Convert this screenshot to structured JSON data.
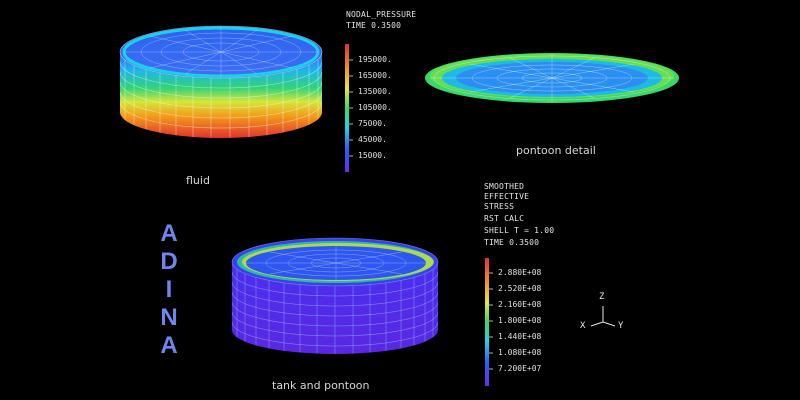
{
  "brand": {
    "letters": [
      "A",
      "D",
      "I",
      "N",
      "A"
    ]
  },
  "captions": {
    "fluid": "fluid",
    "pontoon": "pontoon detail",
    "tank": "tank and pontoon"
  },
  "pressure_legend": {
    "header": [
      "NODAL_PRESSURE",
      "TIME 0.3500"
    ],
    "labels": [
      "195000.",
      "165000.",
      "135000.",
      "105000.",
      "75000.",
      "45000.",
      "15000."
    ]
  },
  "stress_legend": {
    "header": [
      "SMOOTHED",
      "EFFECTIVE",
      "STRESS",
      "RST CALC",
      "SHELL T = 1.00",
      "TIME 0.3500"
    ],
    "labels": [
      "2.880E+08",
      "2.520E+08",
      "2.160E+08",
      "1.800E+08",
      "1.440E+08",
      "1.080E+08",
      "7.200E+07"
    ]
  },
  "axes": {
    "z": "Z",
    "x": "X",
    "y": "Y"
  },
  "colors": {
    "accent": "#6f86f0",
    "red": "#e0322c",
    "orange": "#f39a1a",
    "yellow": "#e8e83a",
    "green": "#3ad76a",
    "cyan": "#1cd6e6",
    "blue": "#2b5ff0",
    "purple": "#6a2cf0"
  }
}
